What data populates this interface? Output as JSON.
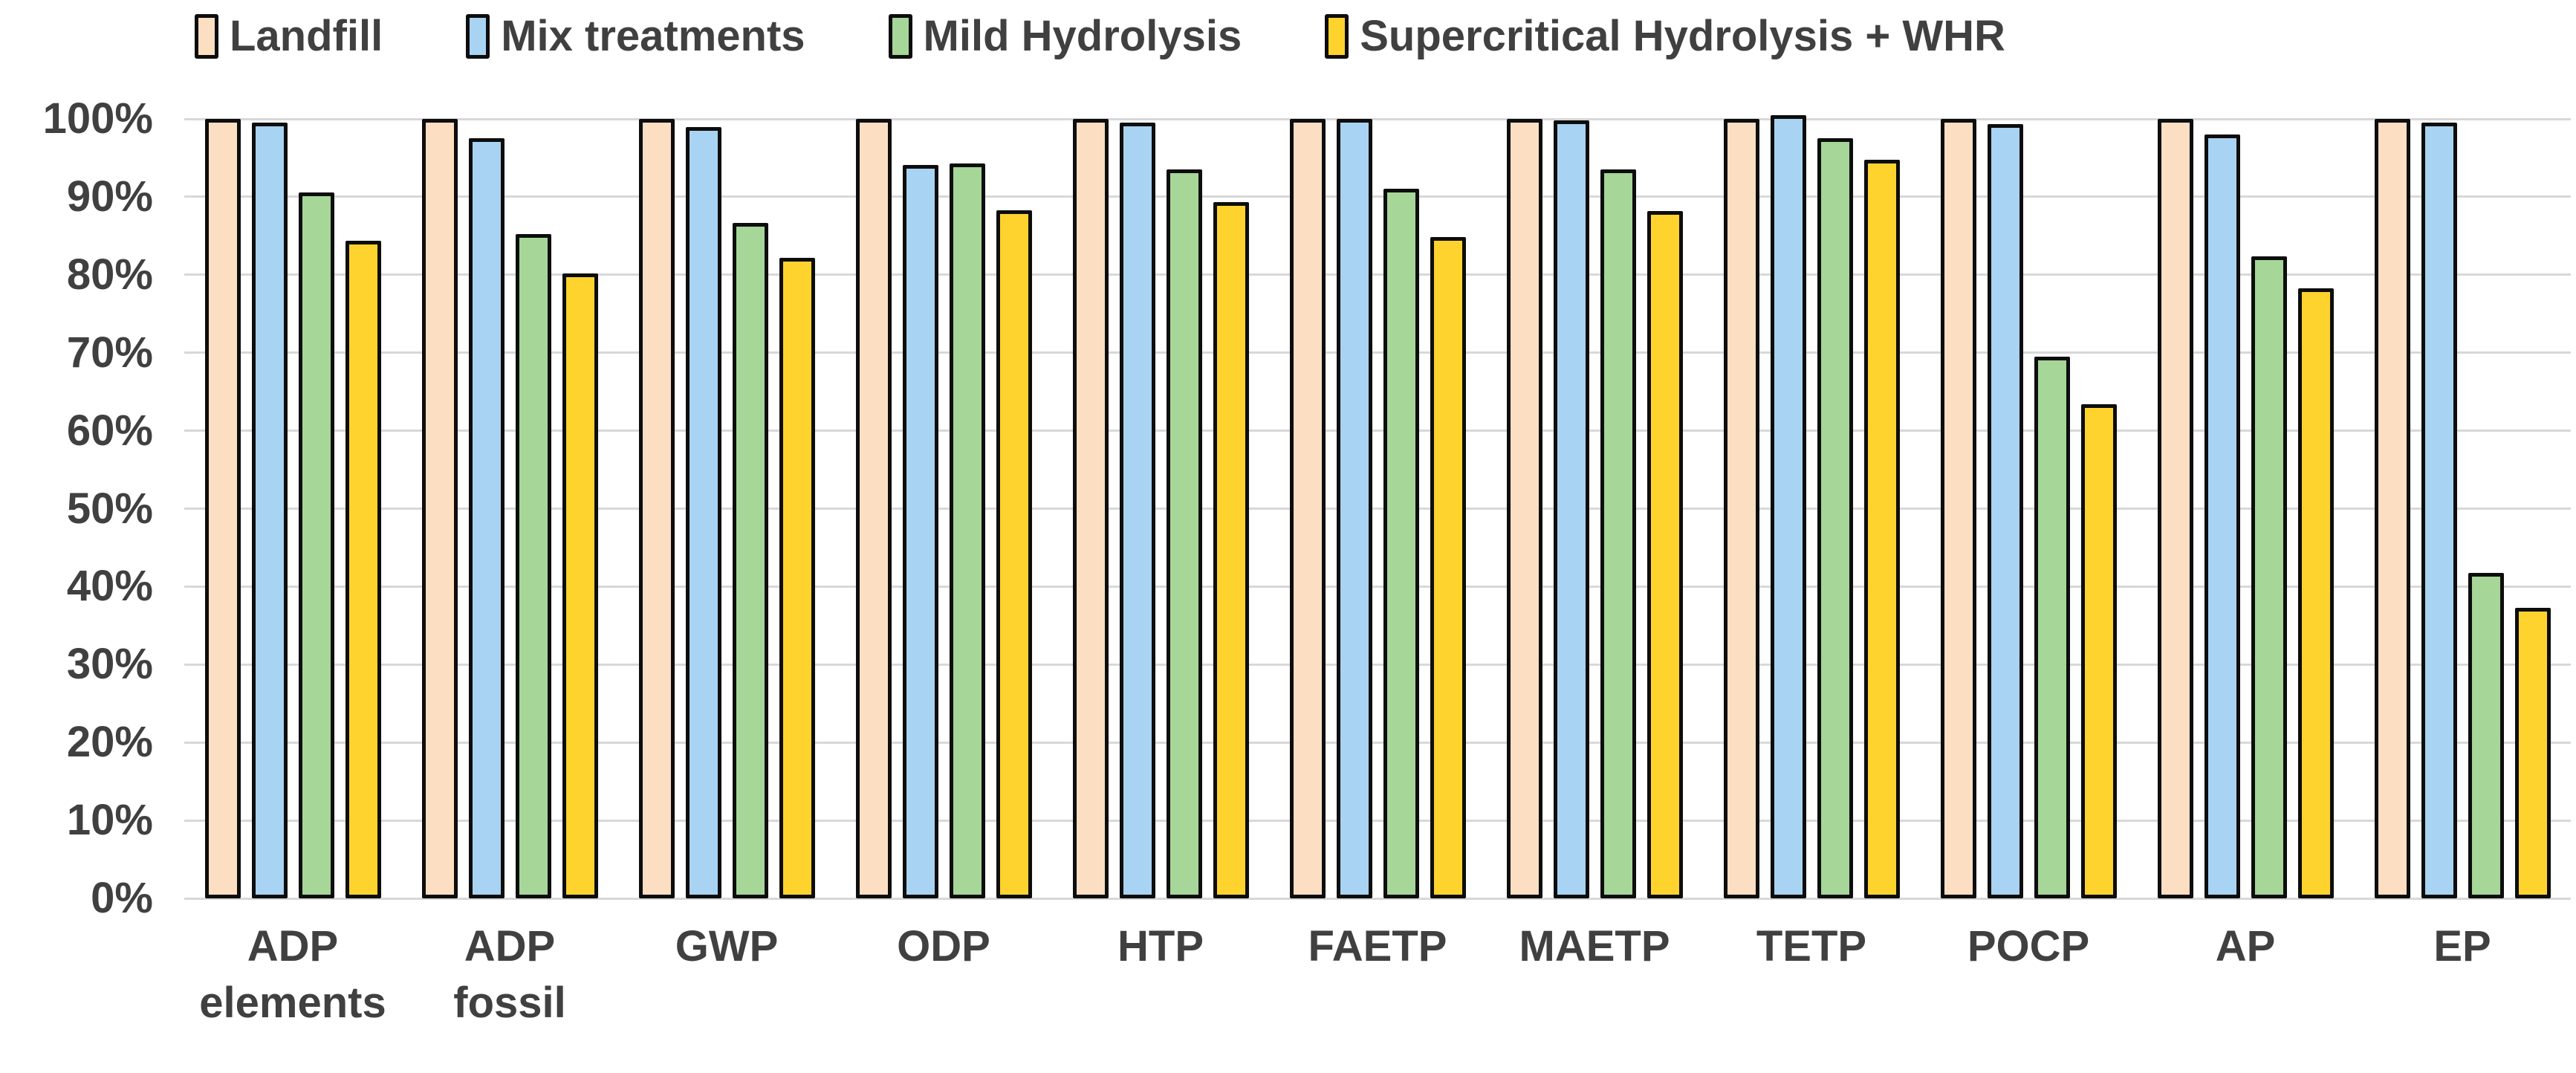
{
  "chart_data": {
    "type": "bar",
    "title": "",
    "xlabel": "",
    "ylabel": "",
    "categories": [
      "ADP elements",
      "ADP fossil",
      "GWP",
      "ODP",
      "HTP",
      "FAETP",
      "MAETP",
      "TETP",
      "POCP",
      "AP",
      "EP"
    ],
    "category_lines": [
      [
        "ADP",
        "elements"
      ],
      [
        "ADP",
        "fossil"
      ],
      [
        "GWP"
      ],
      [
        "ODP"
      ],
      [
        "HTP"
      ],
      [
        "FAETP"
      ],
      [
        "MAETP"
      ],
      [
        "TETP"
      ],
      [
        "POCP"
      ],
      [
        "AP"
      ],
      [
        "EP"
      ]
    ],
    "series": [
      {
        "name": "Landfill",
        "color": "#FCDEC2",
        "values": [
          100,
          100,
          100,
          100,
          100,
          100,
          100,
          100,
          100,
          100,
          100
        ]
      },
      {
        "name": "Mix treatments",
        "color": "#A8D3F2",
        "values": [
          99.5,
          97.5,
          99.0,
          94.1,
          99.5,
          100.0,
          99.8,
          100.5,
          99.3,
          98.0,
          99.5
        ]
      },
      {
        "name": "Mild Hydrolysis",
        "color": "#A6D698",
        "values": [
          90.6,
          85.2,
          86.7,
          94.3,
          93.5,
          91.0,
          93.5,
          97.5,
          69.5,
          82.4,
          41.8
        ]
      },
      {
        "name": "Supercritical Hydrolysis + WHR",
        "color": "#FFD32E",
        "values": [
          84.4,
          80.2,
          82.2,
          88.3,
          89.3,
          84.8,
          88.2,
          94.8,
          63.4,
          78.3,
          37.3
        ]
      }
    ],
    "ylim": [
      0,
      100
    ],
    "yticks": [
      0,
      10,
      20,
      30,
      40,
      50,
      60,
      70,
      80,
      90,
      100
    ],
    "ytick_labels": [
      "0%",
      "10%",
      "20%",
      "30%",
      "40%",
      "50%",
      "60%",
      "70%",
      "80%",
      "90%",
      "100%"
    ],
    "grid": true,
    "legend_position": "top"
  },
  "colors": {
    "text": "#404040",
    "gridline": "#D8D8D8",
    "bar_outline": "#0D0D0D",
    "background": "#FFFFFF"
  }
}
